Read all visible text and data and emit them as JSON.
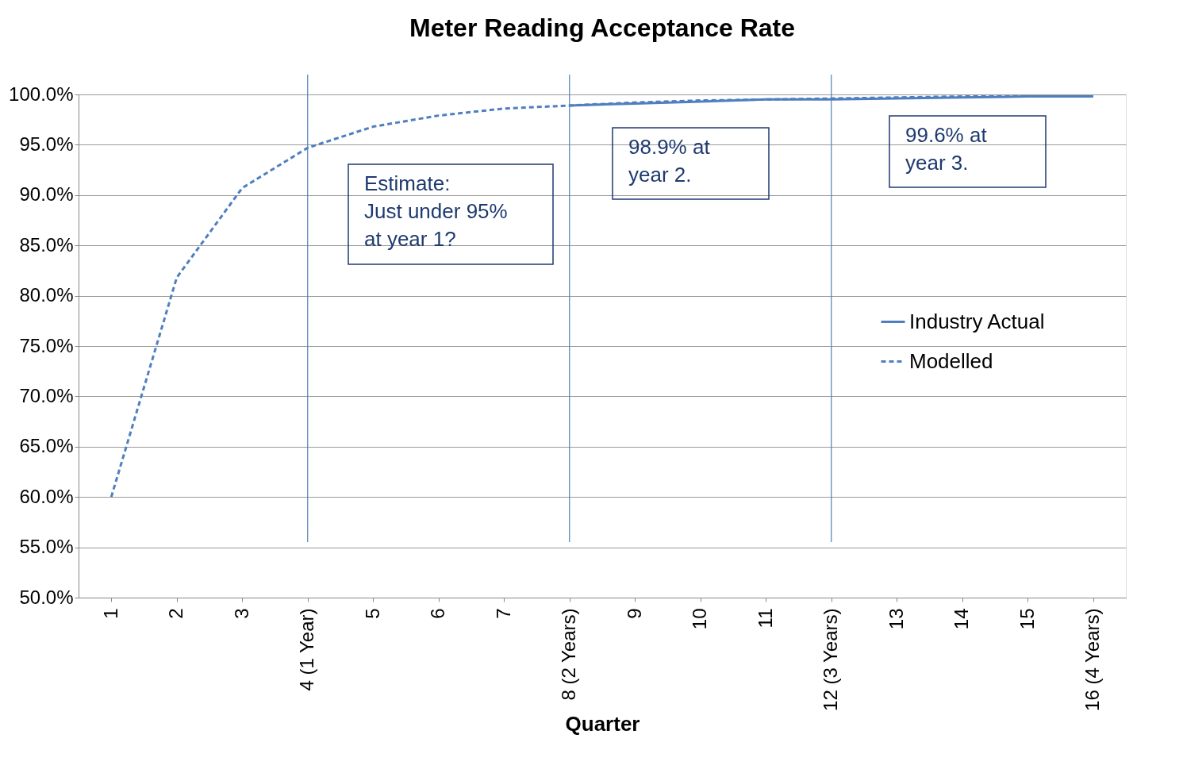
{
  "chart_data": {
    "type": "line",
    "title": "Meter Reading Acceptance Rate",
    "xlabel": "Quarter",
    "categories": [
      "1",
      "2",
      "3",
      "4 (1 Year)",
      "5",
      "6",
      "7",
      "8 (2 Years)",
      "9",
      "10",
      "11",
      "12 (3 Years)",
      "13",
      "14",
      "15",
      "16 (4 Years)"
    ],
    "series": [
      {
        "name": "Industry Actual",
        "color": "#4f7fc0",
        "line_style": "solid",
        "values": [
          null,
          null,
          null,
          null,
          null,
          null,
          null,
          98.9,
          99.1,
          99.3,
          99.5,
          99.5,
          99.6,
          99.7,
          99.8,
          99.8
        ]
      },
      {
        "name": "Modelled",
        "color": "#4f7fc0",
        "line_style": "dashed",
        "values": [
          60.0,
          81.8,
          90.7,
          94.7,
          96.8,
          97.9,
          98.6,
          98.9,
          99.2,
          99.4,
          99.5,
          99.6,
          99.7,
          99.8,
          99.8,
          99.8
        ]
      }
    ],
    "ylim": [
      50,
      100
    ],
    "yticks": [
      {
        "value": 50,
        "label": "50.0%"
      },
      {
        "value": 55,
        "label": "55.0%"
      },
      {
        "value": 60,
        "label": "60.0%"
      },
      {
        "value": 65,
        "label": "65.0%"
      },
      {
        "value": 70,
        "label": "70.0%"
      },
      {
        "value": 75,
        "label": "75.0%"
      },
      {
        "value": 80,
        "label": "80.0%"
      },
      {
        "value": 85,
        "label": "85.0%"
      },
      {
        "value": 90,
        "label": "90.0%"
      },
      {
        "value": 95,
        "label": "95.0%"
      },
      {
        "value": 100,
        "label": "100.0%"
      }
    ],
    "ref_lines": [
      {
        "axis": "x",
        "value": "4 (1 Year)",
        "color": "#4f81bd"
      },
      {
        "axis": "x",
        "value": "8 (2 Years)",
        "color": "#4f81bd"
      },
      {
        "axis": "x",
        "value": "12 (3 Years)",
        "color": "#4f81bd"
      }
    ],
    "annotations": [
      "Estimate:\nJust under 95%\nat year 1?",
      "98.9% at\nyear 2.",
      "99.6% at\nyear 3."
    ],
    "grid": "y",
    "legend": "right"
  }
}
